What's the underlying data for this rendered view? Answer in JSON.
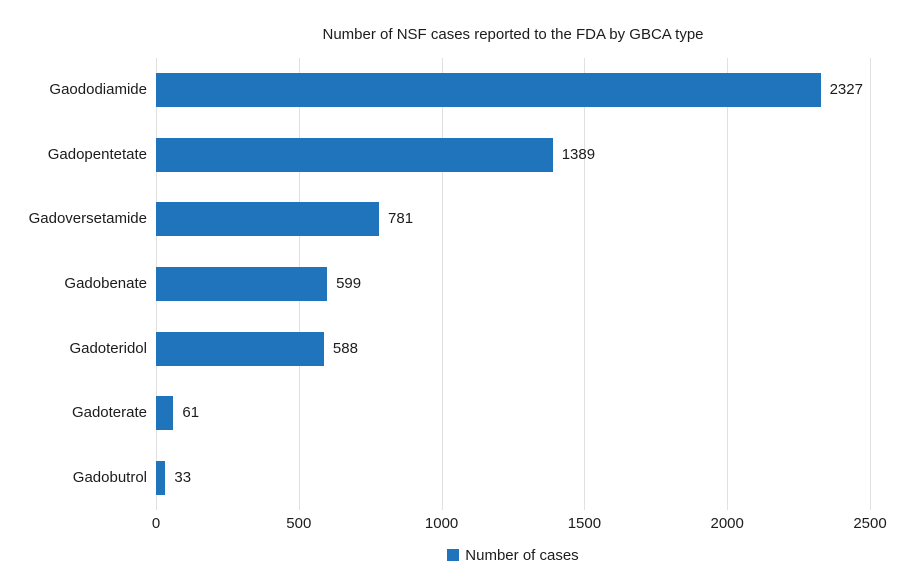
{
  "title": "Number of NSF cases reported to the FDA by GBCA type",
  "legend": {
    "label": "Number of cases"
  },
  "colors": {
    "bar": "#2074BC",
    "gridline": "#e0e0e0",
    "text": "#1c1c1c",
    "background": "#ffffff"
  },
  "chart_data": {
    "type": "bar",
    "orientation": "horizontal",
    "title": "Number of NSF cases reported to the FDA by GBCA type",
    "categories": [
      "Gaododiamide",
      "Gadopentetate",
      "Gadoversetamide",
      "Gadobenate",
      "Gadoteridol",
      "Gadoterate",
      "Gadobutrol"
    ],
    "values": [
      2327,
      1389,
      781,
      599,
      588,
      61,
      33
    ],
    "series_name": "Number of cases",
    "xlabel": "",
    "ylabel": "",
    "xlim": [
      0,
      2500
    ],
    "xticks": [
      0,
      500,
      1000,
      1500,
      2000,
      2500
    ],
    "grid": true,
    "data_labels": true,
    "legend_position": "bottom"
  }
}
